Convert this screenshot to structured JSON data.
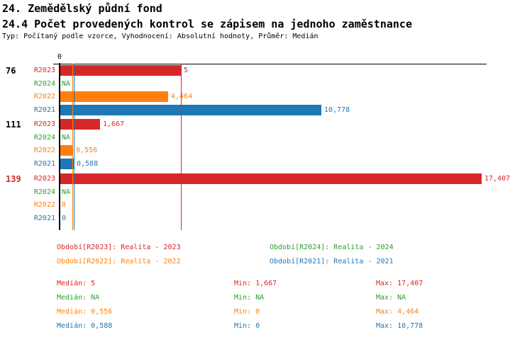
{
  "header": {
    "title": "24. Zemědělský půdní fond",
    "subtitle": "24.4 Počet provedených kontrol se zápisem na jednoho zaměstnance",
    "meta": "Typ: Počítaný podle vzorce, Vyhodnocení: Absolutní hodnoty, Průměr: Medián"
  },
  "chart_data": {
    "type": "bar",
    "orientation": "horizontal",
    "title": "24.4 Počet provedených kontrol se zápisem na jednoho zaměstnance",
    "axis": {
      "origin_tick_label": "0",
      "xmin": 0,
      "xmax": 17.6,
      "gridlines": false
    },
    "series_colors": {
      "R2023": "#D62728",
      "R2024": "#2CA02C",
      "R2022": "#FF7F0E",
      "R2021": "#1F77B4"
    },
    "axis_color": "#000000",
    "groups": [
      {
        "label": "76",
        "label_color": "#000000",
        "bars": [
          {
            "series": "R2023",
            "value": 5,
            "display": "5"
          },
          {
            "series": "R2024",
            "value": null,
            "display": "NA"
          },
          {
            "series": "R2022",
            "value": 4.464,
            "display": "4,464"
          },
          {
            "series": "R2021",
            "value": 10.778,
            "display": "10,778"
          }
        ]
      },
      {
        "label": "111",
        "label_color": "#000000",
        "bars": [
          {
            "series": "R2023",
            "value": 1.667,
            "display": "1,667"
          },
          {
            "series": "R2024",
            "value": null,
            "display": "NA"
          },
          {
            "series": "R2022",
            "value": 0.556,
            "display": "0,556"
          },
          {
            "series": "R2021",
            "value": 0.588,
            "display": "0,588"
          }
        ]
      },
      {
        "label": "139",
        "label_color": "#D62728",
        "bars": [
          {
            "series": "R2023",
            "value": 17.407,
            "display": "17,407"
          },
          {
            "series": "R2024",
            "value": null,
            "display": "NA"
          },
          {
            "series": "R2022",
            "value": 0,
            "display": "0"
          },
          {
            "series": "R2021",
            "value": 0,
            "display": "0"
          }
        ]
      }
    ],
    "median_lines": [
      {
        "series": "R2023",
        "value": 5
      },
      {
        "series": "R2022",
        "value": 0.556
      },
      {
        "series": "R2021",
        "value": 0.588
      }
    ],
    "legend": {
      "items": [
        {
          "series": "R2023",
          "label": "Období[R2023]: Realita - 2023",
          "col": 0,
          "row": 0
        },
        {
          "series": "R2024",
          "label": "Období[R2024]: Realita - 2024",
          "col": 1,
          "row": 0
        },
        {
          "series": "R2022",
          "label": "Období[R2022]: Realita - 2022",
          "col": 0,
          "row": 1
        },
        {
          "series": "R2021",
          "label": "Období[R2021]: Realita - 2021",
          "col": 1,
          "row": 1
        }
      ]
    },
    "stats": {
      "labels": {
        "median": "Medián",
        "min": "Min",
        "max": "Max"
      },
      "rows": [
        {
          "series": "R2023",
          "median": "5",
          "min": "1,667",
          "max": "17,407"
        },
        {
          "series": "R2024",
          "median": "NA",
          "min": "NA",
          "max": "NA"
        },
        {
          "series": "R2022",
          "median": "0,556",
          "min": "0",
          "max": "4,464"
        },
        {
          "series": "R2021",
          "median": "0,588",
          "min": "0",
          "max": "10,778"
        }
      ]
    }
  }
}
